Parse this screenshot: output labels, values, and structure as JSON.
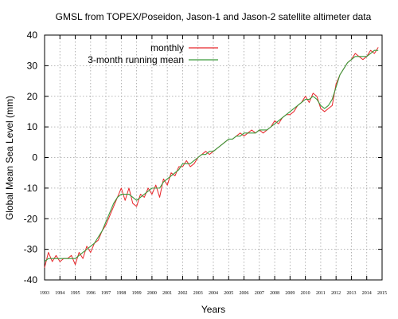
{
  "colors": {
    "monthly": "#e8262a",
    "running_mean": "#3a9a3a"
  },
  "chart_data": {
    "type": "line",
    "title": "GMSL from TOPEX/Poseidon, Jason-1 and Jason-2 satellite altimeter data",
    "xlabel": "Years",
    "ylabel": "Global Mean Sea Level (mm)",
    "xlim": [
      1993,
      2015
    ],
    "ylim": [
      -40,
      40
    ],
    "x_ticks": [
      "1993",
      "1994",
      "1995",
      "1996",
      "1997",
      "1998",
      "1999",
      "2000",
      "2001",
      "2002",
      "2003",
      "2004",
      "2005",
      "2006",
      "2007",
      "2008",
      "2009",
      "2010",
      "2011",
      "2012",
      "2013",
      "2014",
      "2015"
    ],
    "y_ticks": [
      "40",
      "30",
      "20",
      "10",
      "0",
      "-10",
      "-20",
      "-30",
      "-40"
    ],
    "grid": true,
    "legend_position": "top-right",
    "series": [
      {
        "name": "monthly",
        "x": [
          1993.0,
          1993.25,
          1993.5,
          1993.75,
          1994.0,
          1994.25,
          1994.5,
          1994.75,
          1995.0,
          1995.25,
          1995.5,
          1995.75,
          1996.0,
          1996.25,
          1996.5,
          1996.75,
          1997.0,
          1997.25,
          1997.5,
          1997.75,
          1998.0,
          1998.25,
          1998.5,
          1998.75,
          1999.0,
          1999.25,
          1999.5,
          1999.75,
          2000.0,
          2000.25,
          2000.5,
          2000.75,
          2001.0,
          2001.25,
          2001.5,
          2001.75,
          2002.0,
          2002.25,
          2002.5,
          2002.75,
          2003.0,
          2003.25,
          2003.5,
          2003.75,
          2004.0,
          2004.25,
          2004.5,
          2004.75,
          2005.0,
          2005.25,
          2005.5,
          2005.75,
          2006.0,
          2006.25,
          2006.5,
          2006.75,
          2007.0,
          2007.25,
          2007.5,
          2007.75,
          2008.0,
          2008.25,
          2008.5,
          2008.75,
          2009.0,
          2009.25,
          2009.5,
          2009.75,
          2010.0,
          2010.25,
          2010.5,
          2010.75,
          2011.0,
          2011.25,
          2011.5,
          2011.75,
          2012.0,
          2012.25,
          2012.5,
          2012.75,
          2013.0,
          2013.25,
          2013.5,
          2013.75,
          2014.0,
          2014.25,
          2014.5,
          2014.75
        ],
        "y": [
          -36,
          -31,
          -34,
          -32,
          -34,
          -33,
          -33,
          -32,
          -35,
          -31,
          -33,
          -29,
          -31,
          -28,
          -27,
          -24,
          -22,
          -19,
          -16,
          -13,
          -10,
          -14,
          -10,
          -15,
          -16,
          -12,
          -13,
          -10,
          -12,
          -9,
          -13,
          -7,
          -9,
          -5,
          -6,
          -3,
          -3,
          -1,
          -3,
          -2,
          0,
          1,
          2,
          1,
          2,
          3,
          4,
          5,
          6,
          6,
          7,
          8,
          7,
          8,
          9,
          8,
          9,
          8,
          9,
          10,
          12,
          11,
          13,
          14,
          14,
          15,
          17,
          18,
          20,
          18,
          21,
          20,
          16,
          15,
          16,
          17,
          24,
          27,
          29,
          31,
          32,
          34,
          33,
          32,
          33,
          35,
          34,
          36
        ]
      },
      {
        "name": "3-month running mean",
        "x": [
          1993.0,
          1993.25,
          1993.5,
          1993.75,
          1994.0,
          1994.25,
          1994.5,
          1994.75,
          1995.0,
          1995.25,
          1995.5,
          1995.75,
          1996.0,
          1996.25,
          1996.5,
          1996.75,
          1997.0,
          1997.25,
          1997.5,
          1997.75,
          1998.0,
          1998.25,
          1998.5,
          1998.75,
          1999.0,
          1999.25,
          1999.5,
          1999.75,
          2000.0,
          2000.25,
          2000.5,
          2000.75,
          2001.0,
          2001.25,
          2001.5,
          2001.75,
          2002.0,
          2002.25,
          2002.5,
          2002.75,
          2003.0,
          2003.25,
          2003.5,
          2003.75,
          2004.0,
          2004.25,
          2004.5,
          2004.75,
          2005.0,
          2005.25,
          2005.5,
          2005.75,
          2006.0,
          2006.25,
          2006.5,
          2006.75,
          2007.0,
          2007.25,
          2007.5,
          2007.75,
          2008.0,
          2008.25,
          2008.5,
          2008.75,
          2009.0,
          2009.25,
          2009.5,
          2009.75,
          2010.0,
          2010.25,
          2010.5,
          2010.75,
          2011.0,
          2011.25,
          2011.5,
          2011.75,
          2012.0,
          2012.25,
          2012.5,
          2012.75,
          2013.0,
          2013.25,
          2013.5,
          2013.75,
          2014.0,
          2014.25,
          2014.5,
          2014.75
        ],
        "y": [
          -34,
          -33,
          -33,
          -33,
          -33,
          -33,
          -33,
          -33,
          -33,
          -32,
          -31,
          -30,
          -29,
          -28,
          -26,
          -24,
          -21,
          -18,
          -15,
          -13,
          -12,
          -12,
          -12,
          -13,
          -14,
          -13,
          -12,
          -11,
          -10,
          -10,
          -10,
          -8,
          -7,
          -6,
          -5,
          -4,
          -2,
          -2,
          -2,
          -1,
          0,
          1,
          1,
          2,
          2,
          3,
          4,
          5,
          6,
          6,
          7,
          7,
          8,
          8,
          8,
          8,
          9,
          9,
          9,
          10,
          11,
          12,
          13,
          14,
          15,
          16,
          17,
          18,
          19,
          19,
          20,
          19,
          17,
          16,
          17,
          19,
          23,
          27,
          29,
          31,
          32,
          33,
          33,
          33,
          33,
          34,
          35,
          35
        ]
      }
    ]
  }
}
